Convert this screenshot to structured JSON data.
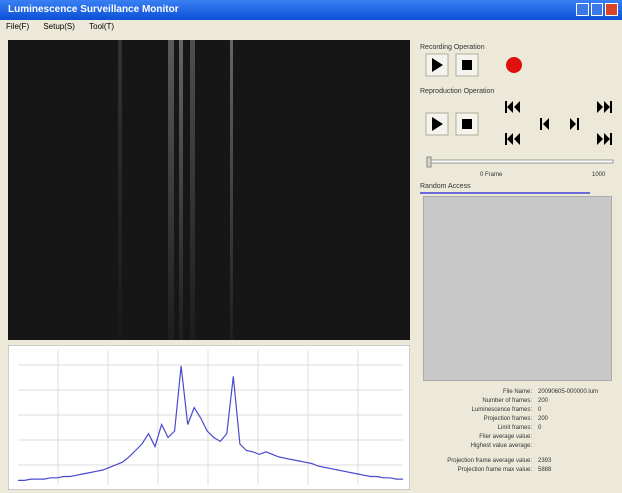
{
  "window": {
    "title": "Luminescence Surveillance Monitor",
    "menu": [
      "File(F)",
      "Setup(S)",
      "Tool(T)"
    ]
  },
  "recording": {
    "title": "Recording Operation"
  },
  "reproduction": {
    "title": "Reproduction Operation",
    "start_label": "0 Frame",
    "end_label": "1000"
  },
  "random_access": {
    "title": "Random Access"
  },
  "info": {
    "rows": [
      [
        "File Name:",
        "20090605-000000.lum"
      ],
      [
        "Number of frames:",
        "200"
      ],
      [
        "Luminescence frames:",
        "0"
      ],
      [
        "Projection frames:",
        "200"
      ],
      [
        "Limit frames:",
        "0"
      ],
      [
        "Filer average value:",
        ""
      ],
      [
        "Highest value average:",
        ""
      ],
      [
        "Projection frame average value:",
        "2393"
      ],
      [
        "Projection frame max value:",
        "5888"
      ]
    ]
  },
  "spectrum": {
    "color": "#4a4ad0",
    "ylim": [
      0,
      100
    ],
    "values": [
      2,
      2,
      3,
      3,
      3,
      4,
      4,
      5,
      5,
      6,
      7,
      8,
      9,
      10,
      12,
      14,
      16,
      20,
      25,
      30,
      38,
      28,
      45,
      35,
      40,
      90,
      45,
      58,
      50,
      40,
      35,
      32,
      38,
      82,
      30,
      25,
      24,
      22,
      24,
      22,
      20,
      19,
      18,
      17,
      16,
      15,
      13,
      12,
      11,
      10,
      9,
      8,
      7,
      6,
      5,
      5,
      4,
      4,
      3,
      3
    ]
  }
}
